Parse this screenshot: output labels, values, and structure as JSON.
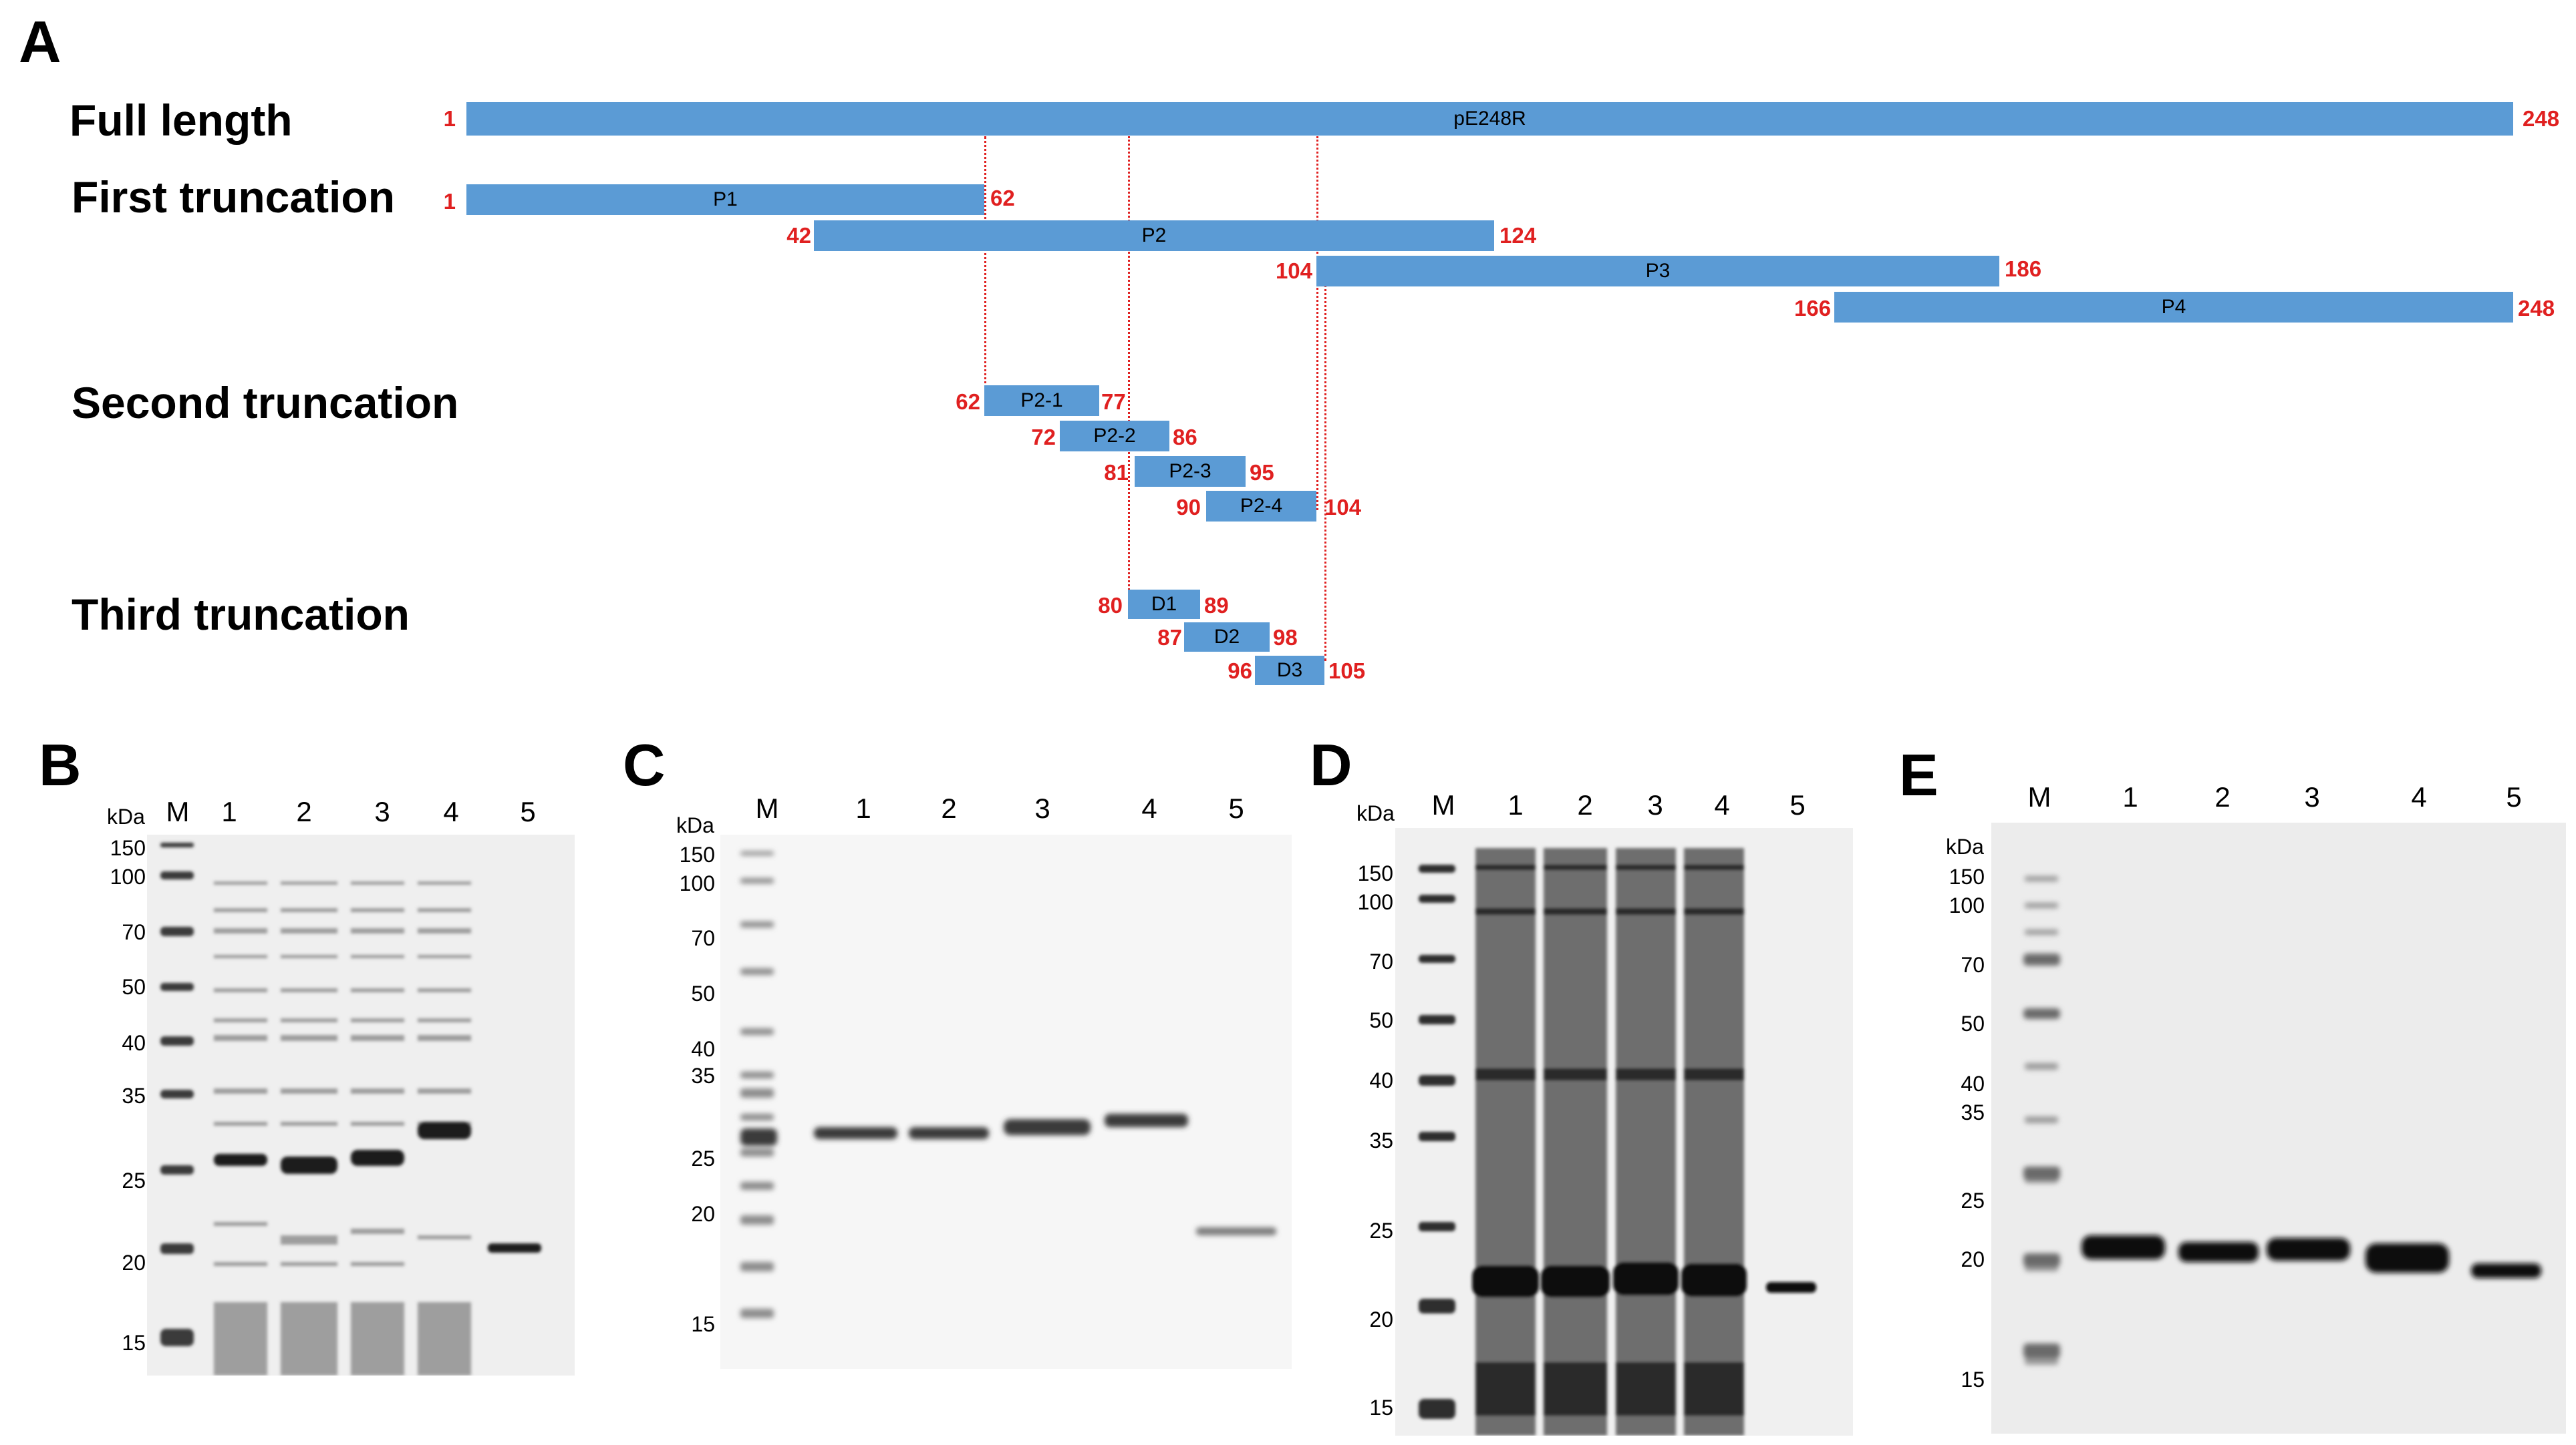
{
  "panelA": {
    "letter": "A",
    "rows": {
      "full": "Full length",
      "first": "First truncation",
      "second": "Second truncation",
      "third": "Third truncation"
    },
    "bars": [
      {
        "label": "pE248R",
        "start": "1",
        "end": "248"
      },
      {
        "label": "P1",
        "start": "1",
        "end": "62"
      },
      {
        "label": "P2",
        "start": "42",
        "end": "124"
      },
      {
        "label": "P3",
        "start": "104",
        "end": "186"
      },
      {
        "label": "P4",
        "start": "166",
        "end": "248"
      },
      {
        "label": "P2-1",
        "start": "62",
        "end": "77"
      },
      {
        "label": "P2-2",
        "start": "72",
        "end": "86"
      },
      {
        "label": "P2-3",
        "start": "81",
        "end": "95"
      },
      {
        "label": "P2-4",
        "start": "90",
        "end": "104"
      },
      {
        "label": "D1",
        "start": "80",
        "end": "89"
      },
      {
        "label": "D2",
        "start": "87",
        "end": "98"
      },
      {
        "label": "D3",
        "start": "96",
        "end": "105"
      }
    ],
    "colors": {
      "bar": "#5b9bd5",
      "numbers": "#e02020",
      "guides": "#e02020"
    }
  },
  "gels": [
    {
      "letter": "B",
      "unit": "kDa",
      "lanes": [
        "M",
        "1",
        "2",
        "3",
        "4",
        "5"
      ],
      "markers": [
        "150",
        "100",
        "70",
        "50",
        "40",
        "35",
        "25",
        "20",
        "15"
      ],
      "style": "coomassie"
    },
    {
      "letter": "C",
      "unit": "kDa",
      "lanes": [
        "M",
        "1",
        "2",
        "3",
        "4",
        "5"
      ],
      "markers": [
        "150",
        "100",
        "70",
        "50",
        "40",
        "35",
        "25",
        "20",
        "15"
      ],
      "style": "western"
    },
    {
      "letter": "D",
      "unit": "kDa",
      "lanes": [
        "M",
        "1",
        "2",
        "3",
        "4",
        "5"
      ],
      "markers": [
        "150",
        "100",
        "70",
        "50",
        "40",
        "35",
        "25",
        "20",
        "15"
      ],
      "style": "coomassie"
    },
    {
      "letter": "E",
      "unit": "kDa",
      "lanes": [
        "M",
        "1",
        "2",
        "3",
        "4",
        "5"
      ],
      "markers": [
        "150",
        "100",
        "70",
        "50",
        "40",
        "35",
        "25",
        "20",
        "15"
      ],
      "style": "western"
    }
  ]
}
